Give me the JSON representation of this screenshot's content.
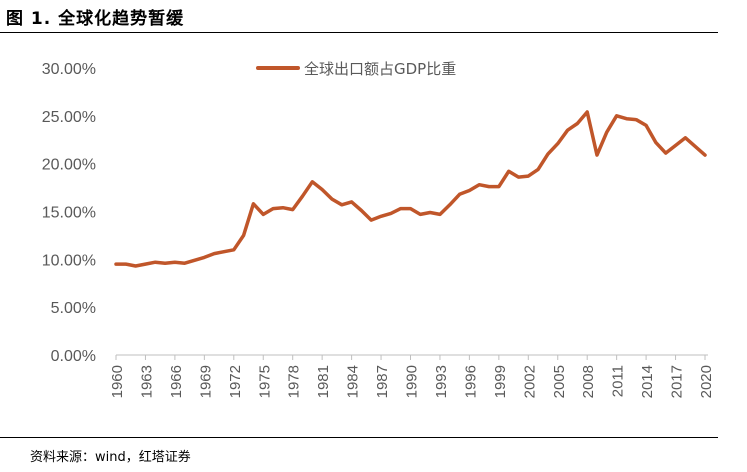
{
  "figure": {
    "title": "图 1. 全球化趋势暂缓",
    "source": "资料来源：wind，红塔证券"
  },
  "colors": {
    "line": "#c0562a",
    "axis": "#bfbfbf",
    "text": "#595959"
  },
  "chart_data": {
    "type": "line",
    "title": "",
    "xlabel": "",
    "ylabel": "",
    "ylim": [
      0,
      30
    ],
    "y_ticks": [
      "0.00%",
      "5.00%",
      "10.00%",
      "15.00%",
      "20.00%",
      "25.00%",
      "30.00%"
    ],
    "x_tick_labels": [
      "1960",
      "1963",
      "1966",
      "1969",
      "1972",
      "1975",
      "1978",
      "1981",
      "1984",
      "1987",
      "1990",
      "1993",
      "1996",
      "1999",
      "2002",
      "2005",
      "2008",
      "2011",
      "2014",
      "2017",
      "2020"
    ],
    "grid": false,
    "legend_position": "top",
    "series": [
      {
        "name": "全球出口额占GDP比重",
        "x": [
          1960,
          1961,
          1962,
          1963,
          1964,
          1965,
          1966,
          1967,
          1968,
          1969,
          1970,
          1971,
          1972,
          1973,
          1974,
          1975,
          1976,
          1977,
          1978,
          1979,
          1980,
          1981,
          1982,
          1983,
          1984,
          1985,
          1986,
          1987,
          1988,
          1989,
          1990,
          1991,
          1992,
          1993,
          1994,
          1995,
          1996,
          1997,
          1998,
          1999,
          2000,
          2001,
          2002,
          2003,
          2004,
          2005,
          2006,
          2007,
          2008,
          2009,
          2010,
          2011,
          2012,
          2013,
          2014,
          2015,
          2016,
          2017,
          2018,
          2019,
          2020
        ],
        "values": [
          9.5,
          9.5,
          9.3,
          9.5,
          9.7,
          9.6,
          9.7,
          9.6,
          9.9,
          10.2,
          10.6,
          10.8,
          11.0,
          12.5,
          15.8,
          14.7,
          15.3,
          15.4,
          15.2,
          16.6,
          18.1,
          17.3,
          16.3,
          15.7,
          16.0,
          15.1,
          14.1,
          14.5,
          14.8,
          15.3,
          15.3,
          14.7,
          14.9,
          14.7,
          15.7,
          16.8,
          17.2,
          17.8,
          17.6,
          17.6,
          19.2,
          18.6,
          18.7,
          19.4,
          21.0,
          22.1,
          23.5,
          24.2,
          25.4,
          20.9,
          23.3,
          25.0,
          24.7,
          24.6,
          24.0,
          22.2,
          21.1,
          21.9,
          22.7,
          21.8,
          20.9
        ]
      }
    ]
  }
}
